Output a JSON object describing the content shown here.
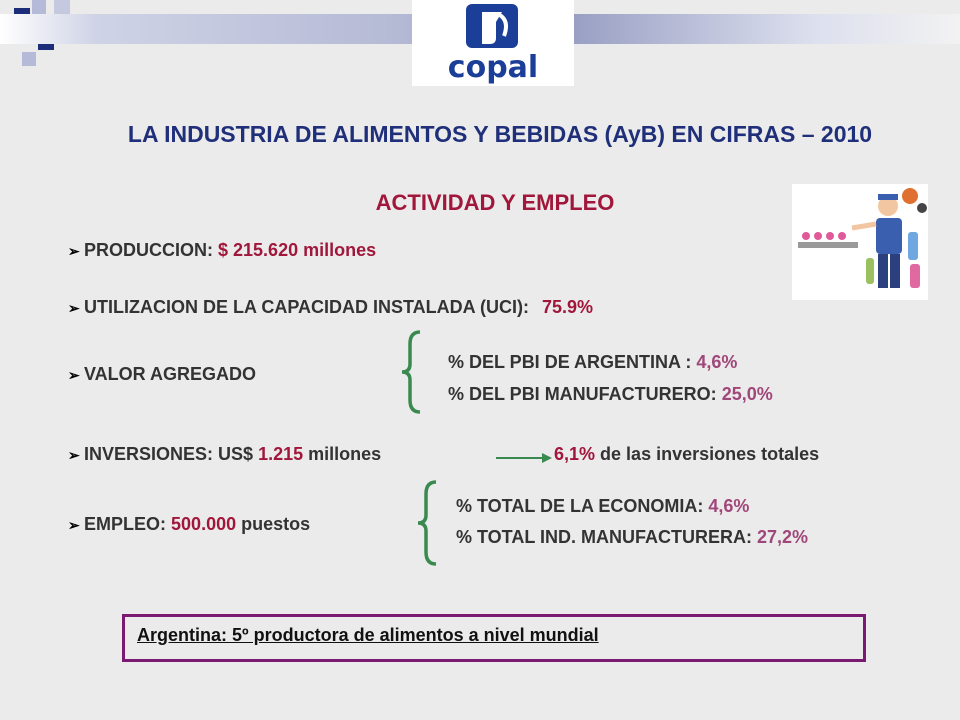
{
  "logo": {
    "text": "copal"
  },
  "title": "LA INDUSTRIA DE ALIMENTOS Y BEBIDAS (AyB) EN CIFRAS – 2010",
  "subtitle": "ACTIVIDAD Y EMPLEO",
  "bullets": {
    "produccion": {
      "label": "PRODUCCION:",
      "value": "$ 215.620",
      "unit": "millones"
    },
    "uci": {
      "label": "UTILIZACION DE LA CAPACIDAD INSTALADA (UCI):",
      "value": "75.9%"
    },
    "valor_agregado": {
      "label": "VALOR AGREGADO",
      "items": [
        {
          "label": "% DEL PBI DE ARGENTINA :",
          "value": "4,6%"
        },
        {
          "label": "% DEL PBI MANUFACTURERO:",
          "value": "25,0%"
        }
      ]
    },
    "inversiones": {
      "label": "INVERSIONES: US$",
      "value": "1.215",
      "unit": "millones",
      "pct": "6,1%",
      "pct_text": "de las inversiones totales"
    },
    "empleo": {
      "label": "EMPLEO:",
      "value": "500.000",
      "unit": "puestos",
      "items": [
        {
          "label": "% TOTAL DE LA ECONOMIA:",
          "value": "4,6%"
        },
        {
          "label": "% TOTAL IND. MANUFACTURERA:",
          "value": "27,2%"
        }
      ]
    }
  },
  "callout": "Argentina: 5º productora de alimentos a nivel mundial",
  "colors": {
    "title": "#1f2f7a",
    "accent": "#a0173b",
    "brace": "#3a8a50",
    "callout_border": "#7a1a72"
  },
  "icons": {
    "bullet": "arrow-bullet-icon",
    "illustration": "factory-worker-illustration"
  }
}
